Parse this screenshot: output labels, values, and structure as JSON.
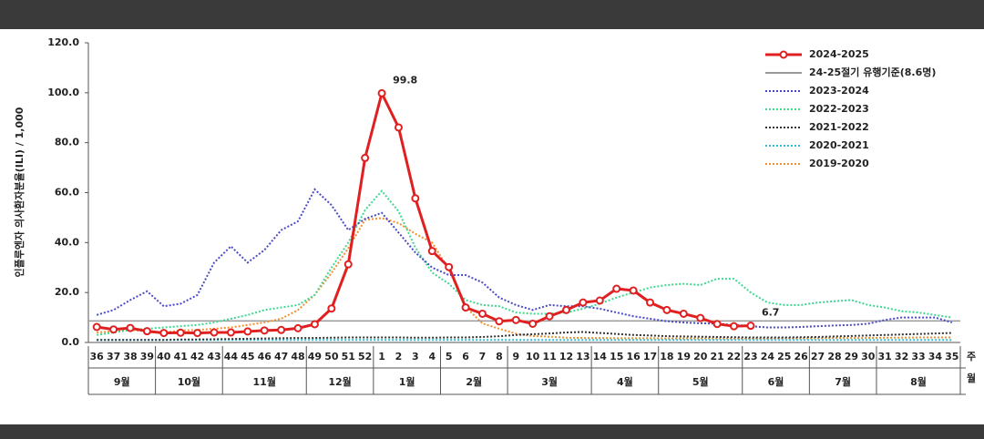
{
  "chart_data": {
    "type": "line",
    "ylabel": "인플루엔자 의사환자분율(ILI) / 1,000",
    "xlabel_week": "주",
    "xlabel_month": "월",
    "ylim": [
      0,
      120
    ],
    "yticks": [
      {
        "value": 0,
        "label": "0.0"
      },
      {
        "value": 20,
        "label": "20.0"
      },
      {
        "value": 40,
        "label": "40.0"
      },
      {
        "value": 60,
        "label": "60.0"
      },
      {
        "value": 80,
        "label": "80.0"
      },
      {
        "value": 100,
        "label": "100.0"
      },
      {
        "value": 120,
        "label": "120.0"
      }
    ],
    "categories": [
      "36",
      "37",
      "38",
      "39",
      "40",
      "41",
      "42",
      "43",
      "44",
      "45",
      "46",
      "47",
      "48",
      "49",
      "50",
      "51",
      "52",
      "1",
      "2",
      "3",
      "4",
      "5",
      "6",
      "7",
      "8",
      "9",
      "10",
      "11",
      "12",
      "13",
      "14",
      "15",
      "16",
      "17",
      "18",
      "19",
      "20",
      "21",
      "22",
      "23",
      "24",
      "25",
      "26",
      "27",
      "28",
      "29",
      "30",
      "31",
      "32",
      "33",
      "34",
      "35"
    ],
    "months": [
      {
        "label": "9월",
        "first_week": "36"
      },
      {
        "label": "10월",
        "first_week": "40"
      },
      {
        "label": "11월",
        "first_week": "44"
      },
      {
        "label": "12월",
        "first_week": "49"
      },
      {
        "label": "1월",
        "first_week": "1"
      },
      {
        "label": "2월",
        "first_week": "5"
      },
      {
        "label": "3월",
        "first_week": "9"
      },
      {
        "label": "4월",
        "first_week": "14"
      },
      {
        "label": "5월",
        "first_week": "18"
      },
      {
        "label": "6월",
        "first_week": "23"
      },
      {
        "label": "7월",
        "first_week": "27"
      },
      {
        "label": "8월",
        "first_week": "31"
      }
    ],
    "threshold": {
      "name": "24-25절기 유행기준(8.6명)",
      "value": 8.6,
      "color": "#999999"
    },
    "series": [
      {
        "name": "2024-2025",
        "color": "#e02020",
        "style": "solid",
        "marker": "circle",
        "values": [
          6.2,
          5.2,
          5.8,
          4.5,
          3.8,
          3.9,
          3.8,
          4,
          4,
          4.4,
          4.8,
          5,
          5.7,
          7.3,
          13.6,
          31.3,
          73.9,
          99.8,
          86.1,
          57.7,
          36.6,
          30.2,
          14,
          11.5,
          8.5,
          9,
          7.5,
          10.5,
          13,
          16,
          16.8,
          21.5,
          20.8,
          16,
          13,
          11.5,
          9.8,
          7.4,
          6.5,
          6.7,
          null,
          null,
          null,
          null,
          null,
          null,
          null,
          null,
          null,
          null,
          null,
          null
        ],
        "value_labels": [
          null,
          null,
          null,
          null,
          null,
          null,
          null,
          null,
          null,
          null,
          null,
          null,
          null,
          null,
          null,
          null,
          null,
          "99.8",
          null,
          null,
          null,
          null,
          null,
          null,
          null,
          null,
          null,
          null,
          null,
          null,
          null,
          null,
          null,
          null,
          null,
          null,
          null,
          null,
          null,
          "6.7",
          null,
          null,
          null,
          null,
          null,
          null,
          null,
          null,
          null,
          null,
          null,
          null
        ]
      },
      {
        "name": "2023-2024",
        "color": "#4a4ac8",
        "style": "dotted",
        "values": [
          11,
          13,
          17,
          20.5,
          14.5,
          15.5,
          19,
          32,
          38.5,
          32,
          37,
          45,
          48.5,
          61.3,
          55,
          45,
          49.5,
          51.9,
          44,
          36,
          30,
          27,
          27,
          24,
          18,
          15,
          13,
          15,
          14.5,
          14.5,
          13.5,
          12,
          10.5,
          9.5,
          8.5,
          8,
          7.7,
          7.5,
          7,
          6.5,
          6,
          6,
          6.2,
          6.5,
          6.8,
          7,
          7.5,
          9,
          10,
          10,
          10,
          8
        ]
      },
      {
        "name": "2022-2023",
        "color": "#40d890",
        "style": "dotted",
        "values": [
          3,
          4,
          5,
          5.5,
          6,
          6.5,
          7,
          8,
          9.5,
          11,
          13,
          14,
          15,
          19,
          30,
          40,
          53,
          60.7,
          52.5,
          38,
          28,
          23.5,
          17,
          15,
          14.5,
          12,
          11.5,
          11.5,
          12,
          13.5,
          15.5,
          18,
          20,
          22,
          23,
          23.5,
          23,
          25.5,
          25.5,
          20,
          16,
          15,
          15,
          16,
          16.5,
          17,
          15,
          14,
          12.5,
          12,
          11,
          10
        ]
      },
      {
        "name": "2021-2022",
        "color": "#333333",
        "style": "dotted",
        "values": [
          1,
          1,
          1,
          1,
          1,
          1.2,
          1.2,
          1.3,
          1.4,
          1.5,
          1.6,
          1.7,
          1.8,
          1.8,
          1.9,
          2,
          2,
          2,
          2,
          1.9,
          1.9,
          2,
          2,
          2.2,
          2.5,
          3,
          3.3,
          3.6,
          4,
          4.2,
          3.8,
          3.4,
          3,
          2.8,
          2.5,
          2.4,
          2.3,
          2.2,
          2.1,
          2,
          2,
          2,
          2.1,
          2.2,
          2.4,
          2.6,
          2.8,
          3,
          3.2,
          3.4,
          3.6,
          3.8
        ]
      },
      {
        "name": "2020-2021",
        "color": "#30b8d8",
        "style": "dotted",
        "values": [
          1,
          1,
          1,
          1,
          1,
          1,
          1,
          1,
          1,
          1,
          1,
          1,
          1,
          1,
          1,
          1,
          1,
          1,
          1,
          1,
          1,
          1,
          1,
          1,
          1,
          1,
          1,
          1,
          1,
          1,
          1,
          1,
          1,
          1,
          1,
          1,
          1,
          1,
          1,
          1,
          1,
          1,
          1,
          1,
          1,
          1,
          1,
          1,
          1,
          1,
          1,
          1
        ]
      },
      {
        "name": "2019-2020",
        "color": "#f09030",
        "style": "dotted",
        "values": [
          4,
          4.5,
          5,
          4.6,
          4,
          4.8,
          5,
          5.5,
          6,
          7,
          8,
          9.5,
          13,
          19.1,
          27.8,
          37.8,
          49.1,
          49.8,
          47.8,
          43.5,
          40,
          29.2,
          14.2,
          7.6,
          5.5,
          3.5,
          2.6,
          2.3,
          1.9,
          1.8,
          1.8,
          1.7,
          1.7,
          1.7,
          1.6,
          1.6,
          1.6,
          1.6,
          1.6,
          1.6,
          1.6,
          1.7,
          1.7,
          1.7,
          1.8,
          1.8,
          1.8,
          1.9,
          1.9,
          2,
          2,
          2
        ]
      }
    ]
  }
}
